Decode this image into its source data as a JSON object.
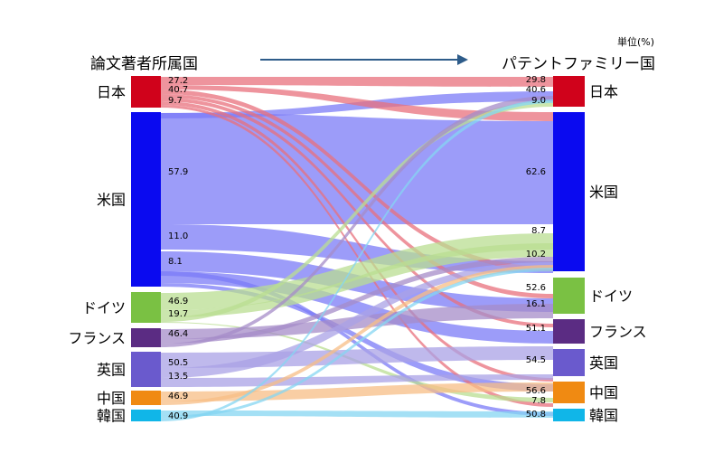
{
  "chart_data": {
    "type": "sankey",
    "title_left": "論文著者所属国",
    "title_right": "パテントファミリー国",
    "unit": "単位(%)",
    "nodes_left": [
      {
        "id": "jp",
        "label": "日本",
        "color": "#d0021b"
      },
      {
        "id": "us",
        "label": "米国",
        "color": "#0a0af0"
      },
      {
        "id": "de",
        "label": "ドイツ",
        "color": "#7ac143"
      },
      {
        "id": "fr",
        "label": "フランス",
        "color": "#5b2c83"
      },
      {
        "id": "uk",
        "label": "英国",
        "color": "#6a5acd"
      },
      {
        "id": "cn",
        "label": "中国",
        "color": "#f08a12"
      },
      {
        "id": "kr",
        "label": "韓国",
        "color": "#10b6e8"
      }
    ],
    "nodes_right": [
      {
        "id": "jp",
        "label": "日本",
        "color": "#d0021b"
      },
      {
        "id": "us",
        "label": "米国",
        "color": "#0a0af0"
      },
      {
        "id": "de",
        "label": "ドイツ",
        "color": "#7ac143"
      },
      {
        "id": "fr",
        "label": "フランス",
        "color": "#5b2c83"
      },
      {
        "id": "uk",
        "label": "英国",
        "color": "#6a5acd"
      },
      {
        "id": "cn",
        "label": "中国",
        "color": "#f08a12"
      },
      {
        "id": "kr",
        "label": "韓国",
        "color": "#10b6e8"
      }
    ],
    "link_colors": {
      "jp": "#e8707c",
      "us": "#7b7bf7",
      "de": "#b9dd92",
      "fr": "#a58cc8",
      "uk": "#aaa2e6",
      "cn": "#f7bd85",
      "kr": "#86d6f2"
    },
    "source_labels": {
      "jp": [
        "27.2",
        "40.7",
        "9.7"
      ],
      "us": [
        "57.9",
        "11.0",
        "8.1"
      ],
      "de": [
        "46.9",
        "19.7"
      ],
      "fr": [
        "46.4"
      ],
      "uk": [
        "50.5",
        "13.5"
      ],
      "cn": [
        "46.9"
      ],
      "kr": [
        "40.9"
      ]
    },
    "target_labels": {
      "jp": [
        "29.8",
        "40.6",
        "9.0"
      ],
      "us": [
        "62.6",
        "8.7",
        "10.2"
      ],
      "de": [
        "52.6",
        "16.1"
      ],
      "fr": [
        "51.1"
      ],
      "uk": [
        "54.5"
      ],
      "cn": [
        "56.6",
        "7.8"
      ],
      "kr": [
        "50.8"
      ]
    }
  }
}
